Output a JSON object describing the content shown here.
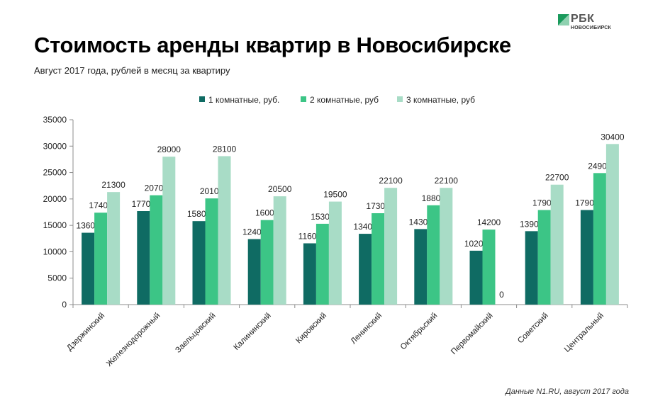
{
  "header": {
    "title": "Стоимость аренды квартир в Новосибирске",
    "subtitle": "Август 2017 года, рублей в месяц за квартиру"
  },
  "logo": {
    "brand": "РБК",
    "city": "НОВОСИБИРСК"
  },
  "footer": {
    "source": "Данные N1.RU, август 2017 года"
  },
  "colors": {
    "series1": "#0f6b63",
    "series2": "#3cc586",
    "series3": "#a8dcc6",
    "logo_green": "#1a9a5c"
  },
  "chart_data": {
    "type": "bar",
    "title": "Стоимость аренды квартир в Новосибирске",
    "categories": [
      "Дзержинский",
      "Железнодорожный",
      "Заельцовский",
      "Калининский",
      "Кировский",
      "Ленинский",
      "Октябрьский",
      "Первомайский",
      "Советский",
      "Центральный"
    ],
    "series": [
      {
        "name": "1 комнатные, руб.",
        "values": [
          13600,
          17700,
          15800,
          12400,
          11600,
          13400,
          14300,
          10200,
          13900,
          17900
        ]
      },
      {
        "name": "2 комнатные, руб",
        "values": [
          17400,
          20700,
          20100,
          16000,
          15300,
          17300,
          18800,
          14200,
          17900,
          24900
        ]
      },
      {
        "name": "3 комнатные, руб",
        "values": [
          21300,
          28000,
          28100,
          20500,
          19500,
          22100,
          22100,
          0,
          22700,
          30400
        ]
      }
    ],
    "ylim": [
      0,
      35000
    ],
    "yticks": [
      "0",
      "5000",
      "10000",
      "15000",
      "20000",
      "25000",
      "30000",
      "35000"
    ],
    "legend": "top-center",
    "grid": false
  }
}
